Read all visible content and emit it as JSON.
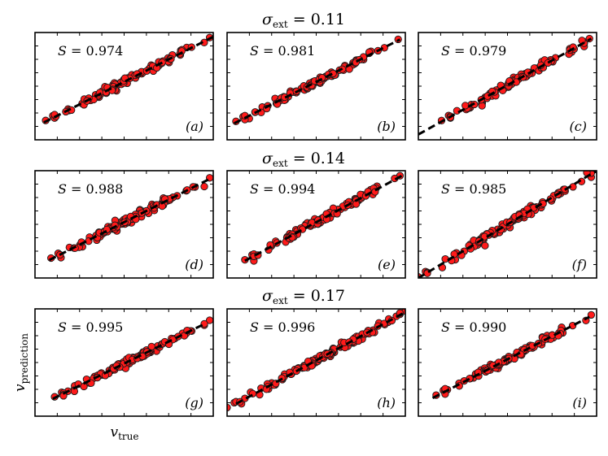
{
  "chart_data": {
    "type": "scatter",
    "layout": "3x3 grid",
    "row_titles": [
      "σ_ext = 0.11",
      "σ_ext = 0.14",
      "σ_ext = 0.17"
    ],
    "row_sigma_values": [
      "0.11",
      "0.14",
      "0.17"
    ],
    "xlabel": "v_true",
    "ylabel": "v_prediction",
    "panels": [
      {
        "tag": "(a)",
        "letter": "a",
        "S": "0.974",
        "sigma": 0.11,
        "xlim": [
          0,
          1
        ],
        "ylim": [
          0,
          1
        ],
        "fit": {
          "slope": 0.84,
          "intercept": 0.12,
          "x0": 0.05,
          "x1": 1.0
        },
        "n_points": 90,
        "x_range": [
          0.06,
          0.98
        ]
      },
      {
        "tag": "(b)",
        "letter": "b",
        "S": "0.981",
        "sigma": 0.11,
        "xlim": [
          0,
          1
        ],
        "ylim": [
          0,
          1
        ],
        "fit": {
          "slope": 0.84,
          "intercept": 0.12,
          "x0": 0.04,
          "x1": 0.97
        },
        "n_points": 90,
        "x_range": [
          0.05,
          0.96
        ]
      },
      {
        "tag": "(c)",
        "letter": "c",
        "S": "0.979",
        "sigma": 0.11,
        "xlim": [
          0,
          1
        ],
        "ylim": [
          0,
          1
        ],
        "fit": {
          "slope": 0.92,
          "intercept": 0.05,
          "x0": 0.0,
          "x1": 0.97
        },
        "n_points": 90,
        "x_range": [
          0.13,
          0.96
        ]
      },
      {
        "tag": "(d)",
        "letter": "d",
        "S": "0.988",
        "sigma": 0.14,
        "xlim": [
          0,
          1
        ],
        "ylim": [
          0,
          1
        ],
        "fit": {
          "slope": 0.84,
          "intercept": 0.1,
          "x0": 0.08,
          "x1": 0.98
        },
        "n_points": 110,
        "x_range": [
          0.09,
          0.98
        ]
      },
      {
        "tag": "(e)",
        "letter": "e",
        "S": "0.994",
        "sigma": 0.14,
        "xlim": [
          0,
          1
        ],
        "ylim": [
          0,
          1
        ],
        "fit": {
          "slope": 0.9,
          "intercept": 0.07,
          "x0": 0.1,
          "x1": 0.98
        },
        "n_points": 110,
        "x_range": [
          0.1,
          0.97
        ]
      },
      {
        "tag": "(f)",
        "letter": "f",
        "S": "0.985",
        "sigma": 0.14,
        "xlim": [
          0,
          1
        ],
        "ylim": [
          0,
          1
        ],
        "fit": {
          "slope": 1.0,
          "intercept": 0.0,
          "x0": 0.0,
          "x1": 1.0
        },
        "n_points": 110,
        "x_range": [
          0.0,
          1.0
        ]
      },
      {
        "tag": "(g)",
        "letter": "g",
        "S": "0.995",
        "sigma": 0.17,
        "xlim": [
          0,
          1
        ],
        "ylim": [
          0,
          1
        ],
        "fit": {
          "slope": 0.82,
          "intercept": 0.08,
          "x0": 0.1,
          "x1": 0.94
        },
        "n_points": 110,
        "x_range": [
          0.11,
          0.98
        ]
      },
      {
        "tag": "(h)",
        "letter": "h",
        "S": "0.996",
        "sigma": 0.17,
        "xlim": [
          0,
          1
        ],
        "ylim": [
          0,
          1
        ],
        "fit": {
          "slope": 0.9,
          "intercept": 0.07,
          "x0": 0.05,
          "x1": 1.0
        },
        "n_points": 110,
        "x_range": [
          0.0,
          1.0
        ]
      },
      {
        "tag": "(i)",
        "letter": "i",
        "S": "0.990",
        "sigma": 0.17,
        "xlim": [
          0,
          1
        ],
        "ylim": [
          0,
          1
        ],
        "fit": {
          "slope": 0.86,
          "intercept": 0.1,
          "x0": 0.08,
          "x1": 0.96
        },
        "n_points": 100,
        "x_range": [
          0.1,
          0.97
        ]
      }
    ]
  }
}
